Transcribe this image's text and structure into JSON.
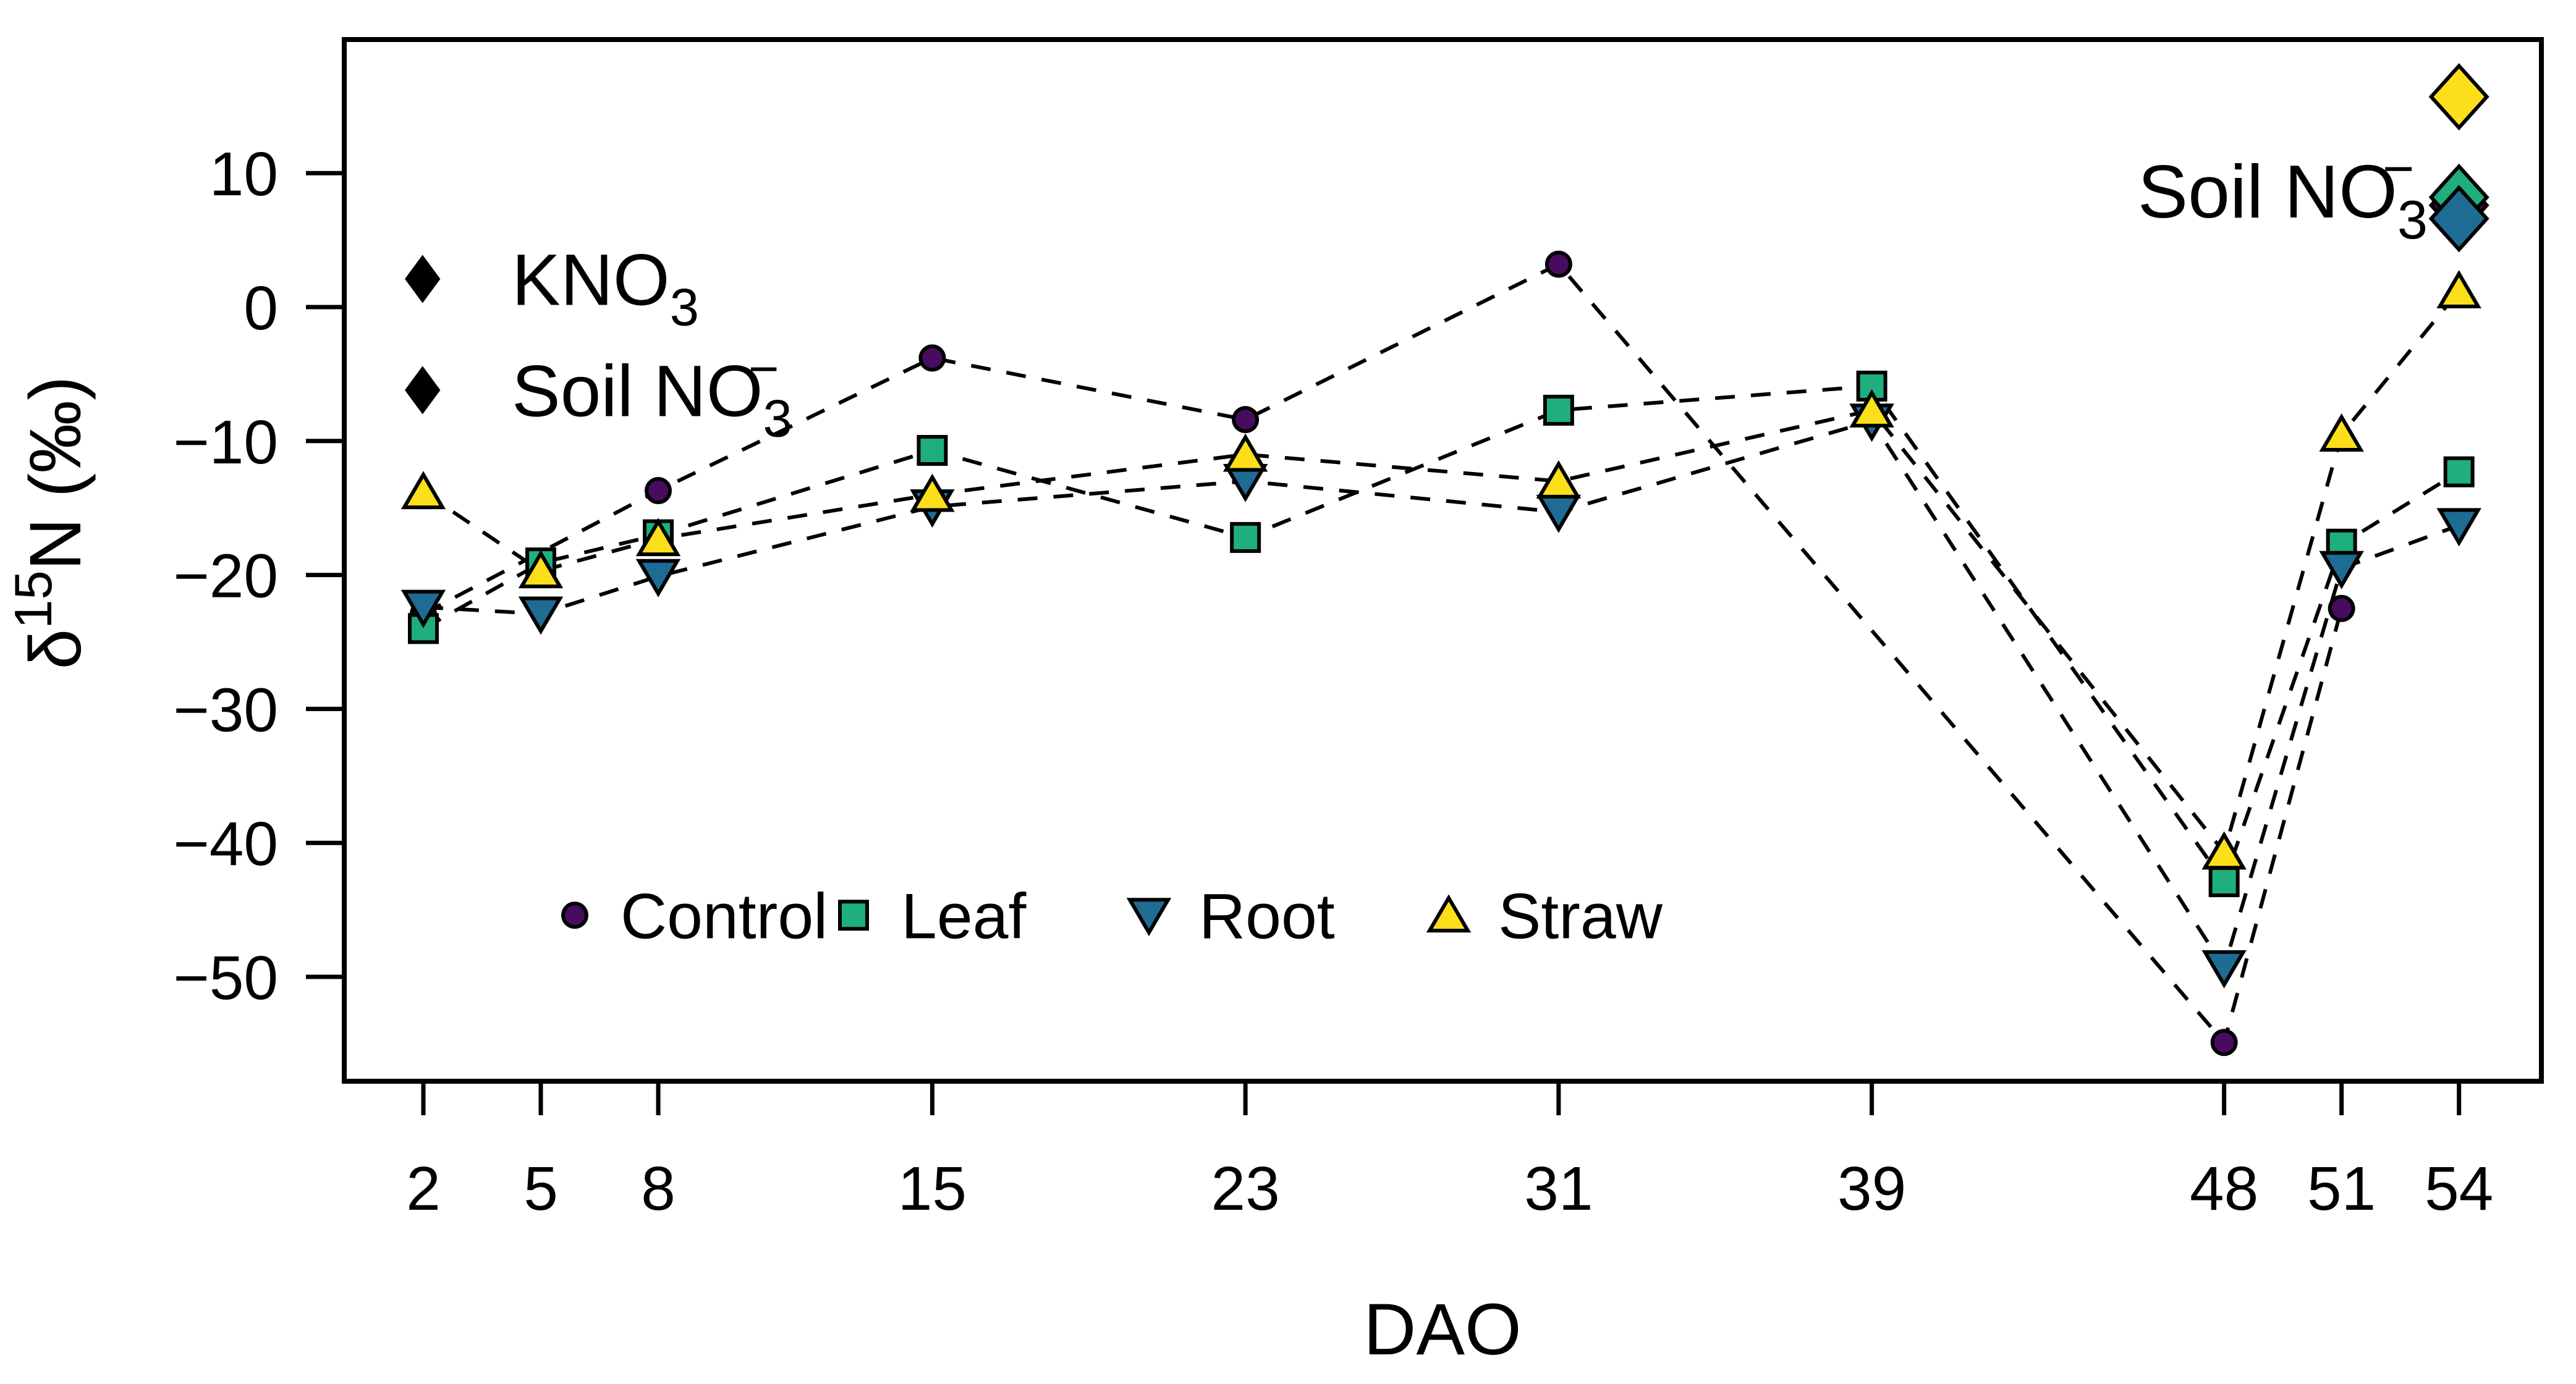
{
  "chart_data": {
    "type": "scatter",
    "title": "",
    "x_label": "DAO",
    "y_label": "δ15N (‰)",
    "y_label_runs": [
      {
        "t": "δ"
      },
      {
        "t": "15",
        "s": "sup"
      },
      {
        "t": "N (‰)"
      }
    ],
    "x_ticks": [
      2,
      5,
      8,
      15,
      23,
      31,
      39,
      48,
      51,
      54
    ],
    "y_ticks": [
      10,
      0,
      -10,
      -20,
      -30,
      -40,
      -50
    ],
    "xlim": [
      0,
      56
    ],
    "ylim": [
      -58,
      20.5
    ],
    "grid": false,
    "line_style": "dashed-black",
    "series": [
      {
        "name": "Control",
        "marker": "circle",
        "color": "#470c5e",
        "points": [
          [
            2,
            -22.9
          ],
          [
            8,
            -13.7
          ],
          [
            15,
            -3.8
          ],
          [
            23,
            -8.4
          ],
          [
            31,
            3.2
          ],
          [
            48,
            -54.9
          ],
          [
            51,
            -22.5
          ]
        ]
      },
      {
        "name": "Leaf",
        "marker": "square",
        "color": "#1fae7e",
        "points": [
          [
            2,
            -24.0
          ],
          [
            5,
            -19.1
          ],
          [
            8,
            -17.0
          ],
          [
            15,
            -10.7
          ],
          [
            23,
            -17.2
          ],
          [
            31,
            -7.7
          ],
          [
            39,
            -5.9
          ],
          [
            48,
            -42.9
          ],
          [
            51,
            -17.7
          ],
          [
            54,
            -12.3
          ]
        ]
      },
      {
        "name": "Root",
        "marker": "triangle-down",
        "color": "#1e6b94",
        "points": [
          [
            2,
            -22.4
          ],
          [
            5,
            -22.9
          ],
          [
            8,
            -20.1
          ],
          [
            15,
            -14.9
          ],
          [
            23,
            -13.0
          ],
          [
            31,
            -15.3
          ],
          [
            39,
            -8.5
          ],
          [
            48,
            -49.3
          ],
          [
            51,
            -19.5
          ],
          [
            54,
            -16.3
          ]
        ]
      },
      {
        "name": "Straw",
        "marker": "triangle-up",
        "color": "#fcdf1a",
        "points": [
          [
            2,
            -13.8
          ],
          [
            5,
            -19.7
          ],
          [
            8,
            -17.3
          ],
          [
            15,
            -14.0
          ],
          [
            23,
            -11.0
          ],
          [
            31,
            -13.0
          ],
          [
            39,
            -7.7
          ],
          [
            48,
            -40.7
          ],
          [
            51,
            -9.5
          ],
          [
            54,
            1.2
          ]
        ]
      }
    ],
    "soil_no3_diamonds": [
      {
        "treatment": "Straw",
        "color": "#fcdf1a",
        "x": 54,
        "y": 15.7
      },
      {
        "treatment": "Control",
        "color": "#470c5e",
        "x": 54,
        "y": 7.6
      },
      {
        "treatment": "Leaf",
        "color": "#1fae7e",
        "x": 54,
        "y": 8.2
      },
      {
        "treatment": "Root",
        "color": "#1e6b94",
        "x": 54,
        "y": 6.6
      }
    ],
    "diamond_legend": [
      {
        "label": "KNO3",
        "runs": [
          {
            "t": "KNO"
          },
          {
            "t": "3",
            "s": "sub"
          }
        ],
        "x": 1.98,
        "y": 2.1
      },
      {
        "label": "Soil NO3−",
        "runs": [
          {
            "t": "Soil NO"
          },
          {
            "t": "3",
            "s": "sub"
          },
          {
            "t": "−",
            "s": "sup",
            "stack": true
          }
        ],
        "x": 1.98,
        "y": -6.2
      }
    ],
    "marker_legend": [
      {
        "label": "Control",
        "marker": "circle",
        "color": "#470c5e"
      },
      {
        "label": "Leaf",
        "marker": "square",
        "color": "#1fae7e"
      },
      {
        "label": "Root",
        "marker": "triangle-down",
        "color": "#1e6b94"
      },
      {
        "label": "Straw",
        "marker": "triangle-up",
        "color": "#fcdf1a"
      }
    ],
    "soil_annotation": {
      "label": "Soil NO3−",
      "runs": [
        {
          "t": "Soil NO"
        },
        {
          "t": "3",
          "s": "sub"
        },
        {
          "t": "−",
          "s": "sup",
          "stack": true
        }
      ],
      "x": 54,
      "y": 8.6
    },
    "legend_position_data_y": -45.4
  },
  "colors": {
    "background": "#ffffff",
    "frame": "#000000",
    "line": "#000000",
    "text": "#000000",
    "control": "#470c5e",
    "leaf": "#1fae7e",
    "root": "#1e6b94",
    "straw": "#fcdf1a"
  }
}
